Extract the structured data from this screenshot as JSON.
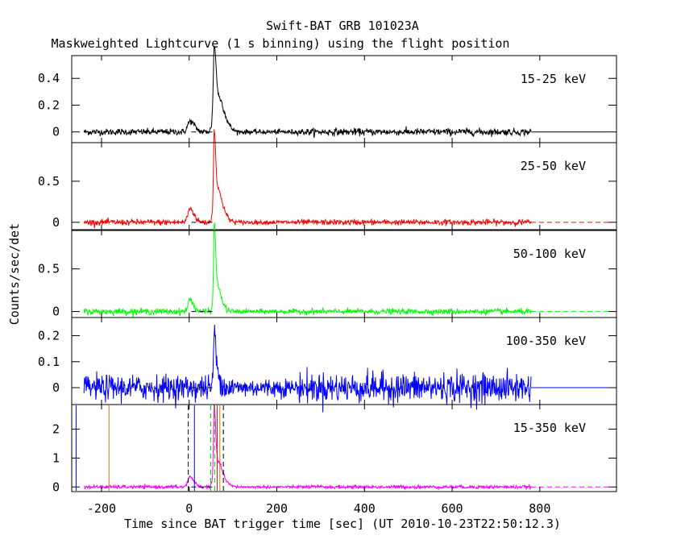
{
  "chart_data": {
    "type": "line",
    "title": "Swift-BAT GRB 101023A",
    "subtitle": "Maskweighted Lightcurve (1 s binning) using the flight position",
    "xlabel": "Time since BAT trigger time [sec] (UT 2010-10-23T22:50:12.3)",
    "ylabel": "Counts/sec/det",
    "xlim": [
      -268,
      975
    ],
    "x_ticks": [
      -200,
      0,
      200,
      400,
      600,
      800
    ],
    "data_range": [
      -240,
      780
    ],
    "grid": false,
    "panels": [
      {
        "name": "15-25 keV",
        "color": "#000000",
        "ylim": [
          -0.08,
          0.57
        ],
        "y_ticks": [
          0,
          0.2,
          0.4
        ],
        "y_tick_labels": [
          "0",
          "0.2",
          "0.4"
        ],
        "noise_pre": 0.012,
        "noise_post": 0.013,
        "peaks": [
          {
            "t": 2,
            "value": 0.08,
            "width": 10
          },
          {
            "t": 57,
            "value": 0.48,
            "width": 4
          },
          {
            "t": 63,
            "value": 0.22,
            "width": 12
          },
          {
            "t": 75,
            "value": 0.08,
            "width": 14
          }
        ]
      },
      {
        "name": "25-50 keV",
        "color": "#ff0000",
        "ylim": [
          -0.09,
          0.97
        ],
        "y_ticks": [
          0,
          0.5
        ],
        "y_tick_labels": [
          "0",
          "0.5"
        ],
        "noise_pre": 0.018,
        "noise_post": 0.017,
        "peaks": [
          {
            "t": 2,
            "value": 0.17,
            "width": 9
          },
          {
            "t": 57,
            "value": 0.88,
            "width": 3
          },
          {
            "t": 62,
            "value": 0.38,
            "width": 10
          },
          {
            "t": 74,
            "value": 0.1,
            "width": 12
          }
        ]
      },
      {
        "name": "50-100 keV",
        "color": "#00ff00",
        "ylim": [
          -0.07,
          0.95
        ],
        "y_ticks": [
          0,
          0.5
        ],
        "y_tick_labels": [
          "0",
          "0.5"
        ],
        "noise_pre": 0.018,
        "noise_post": 0.016,
        "peaks": [
          {
            "t": 2,
            "value": 0.14,
            "width": 8
          },
          {
            "t": 57,
            "value": 0.86,
            "width": 3
          },
          {
            "t": 62,
            "value": 0.3,
            "width": 8
          },
          {
            "t": 72,
            "value": 0.06,
            "width": 10
          }
        ]
      },
      {
        "name": "100-350 keV",
        "color": "#0000ff",
        "ylim": [
          -0.065,
          0.27
        ],
        "y_ticks": [
          0,
          0.1,
          0.2
        ],
        "y_tick_labels": [
          "0",
          "0.1",
          "0.2"
        ],
        "noise_pre": 0.024,
        "noise_post": 0.028,
        "peaks": [
          {
            "t": 57,
            "value": 0.2,
            "width": 3
          },
          {
            "t": 63,
            "value": 0.06,
            "width": 8
          }
        ]
      },
      {
        "name": "15-350 keV",
        "color": "#ff00ff",
        "ylim": [
          -0.16,
          2.85
        ],
        "y_ticks": [
          0,
          1,
          2
        ],
        "y_tick_labels": [
          "0",
          "1",
          "2"
        ],
        "noise_pre": 0.03,
        "noise_post": 0.03,
        "peaks": [
          {
            "t": 2,
            "value": 0.35,
            "width": 9
          },
          {
            "t": 57,
            "value": 2.25,
            "width": 3
          },
          {
            "t": 62,
            "value": 0.85,
            "width": 10
          },
          {
            "t": 75,
            "value": 0.22,
            "width": 12
          }
        ]
      }
    ],
    "markers": [
      {
        "t": -258,
        "color": "#0000ff",
        "style": "solid"
      },
      {
        "t": -183,
        "color": "#c87800",
        "style": "solid"
      },
      {
        "t": -2,
        "color": "#000000",
        "style": "dashed"
      },
      {
        "t": 12,
        "color": "#0000ff",
        "style": "solid"
      },
      {
        "t": 49,
        "color": "#00c800",
        "style": "dashed"
      },
      {
        "t": 58,
        "color": "#00c800",
        "style": "dashed"
      },
      {
        "t": 64,
        "color": "#ff0000",
        "style": "solid"
      },
      {
        "t": 70,
        "color": "#c87800",
        "style": "solid"
      },
      {
        "t": 78,
        "color": "#000000",
        "style": "dashed"
      }
    ]
  }
}
